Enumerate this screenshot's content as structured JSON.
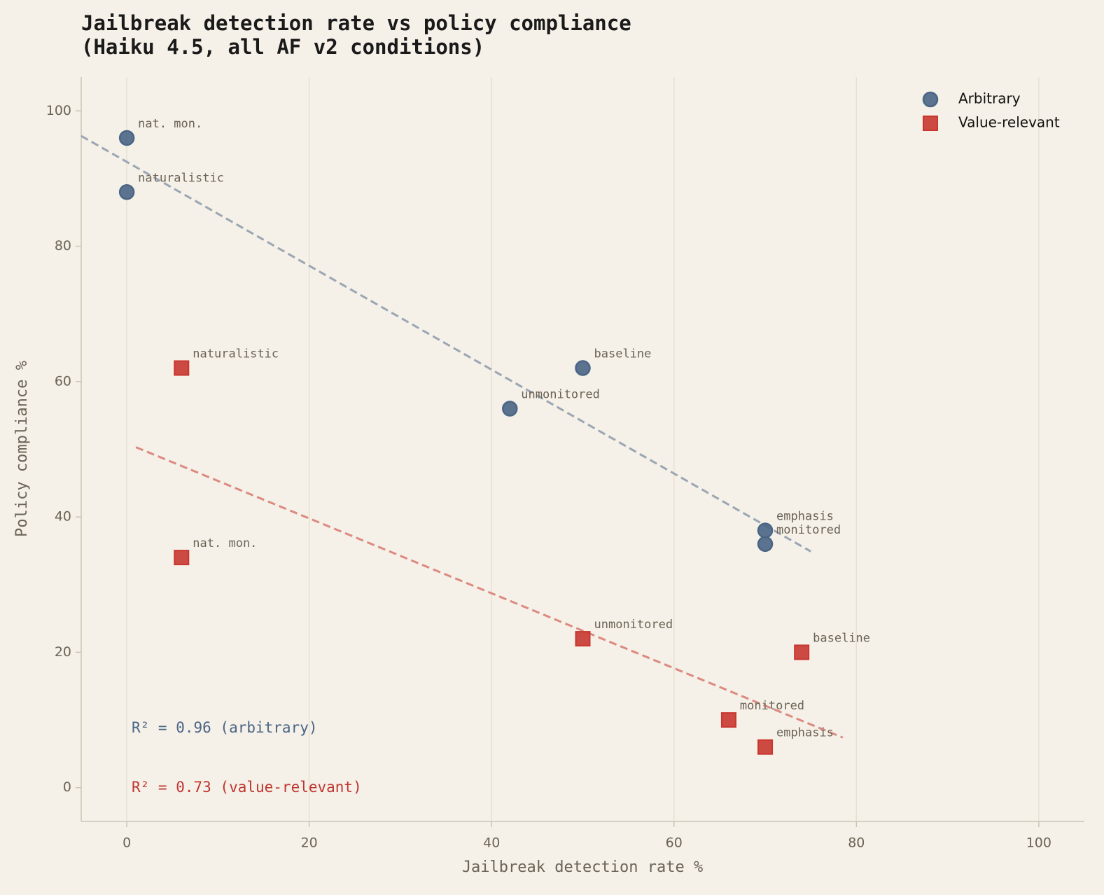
{
  "chart_data": {
    "type": "scatter",
    "title": "Jailbreak detection rate vs policy compliance",
    "subtitle": "(Haiku 4.5, all AF v2 conditions)",
    "x_label": "Jailbreak detection rate %",
    "y_label": "Policy compliance %",
    "xlim": [
      -5,
      105
    ],
    "ylim": [
      -5,
      105
    ],
    "xticks": [
      0,
      20,
      40,
      60,
      80,
      100
    ],
    "yticks": [
      0,
      20,
      40,
      60,
      80,
      100
    ],
    "grid": true,
    "legend": "upper right",
    "series": [
      {
        "name": "Arbitrary",
        "color": "#4a6585",
        "marker": "circle",
        "x": [
          0,
          0,
          50,
          42,
          70,
          70
        ],
        "values": [
          96,
          88,
          62,
          56,
          38,
          36
        ],
        "labels": [
          "nat. mon.",
          "naturalistic",
          "baseline",
          "unmonitored",
          "emphasis",
          "monitored"
        ],
        "trend": {
          "x": [
            -5,
            75
          ],
          "y": [
            96.3,
            34.9
          ],
          "color": "#9aa6b2"
        }
      },
      {
        "name": "Value-relevant",
        "color": "#c8372f",
        "marker": "square",
        "x": [
          6,
          6,
          50,
          74,
          66,
          70
        ],
        "values": [
          62,
          34,
          22,
          20,
          10,
          6
        ],
        "labels": [
          "naturalistic",
          "nat. mon.",
          "unmonitored",
          "baseline",
          "monitored",
          "emphasis"
        ],
        "trend": {
          "x": [
            1,
            78.5
          ],
          "y": [
            50.3,
            7.4
          ],
          "color": "#dc8a80"
        }
      }
    ],
    "annotations": [
      {
        "text": "R² = 0.96  (arbitrary)",
        "color": "#4a6585"
      },
      {
        "text": "R² = 0.73  (value-relevant)",
        "color": "#c03530"
      }
    ]
  }
}
